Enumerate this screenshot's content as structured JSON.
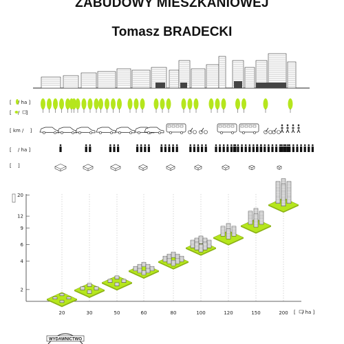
{
  "header": {
    "title": "ZABUDOWY MIESZKANIOWEJ",
    "author": "Tomasz BRADECKI"
  },
  "rows": {
    "trees_label": "[  / ha ]",
    "greenery_label": "[  /  ]",
    "transport_label": "[ km /  ]",
    "people_label": "[  / ha ]",
    "block_label": "[  ]"
  },
  "chart_data": {
    "type": "scatter",
    "x": [
      20,
      30,
      50,
      60,
      80,
      100,
      120,
      150,
      200
    ],
    "x_tick_labels": [
      "20",
      "30",
      "50",
      "60",
      "80",
      "100",
      "120",
      "150",
      "200"
    ],
    "y_tick_labels": [
      "2",
      "4",
      "6",
      "9",
      "12",
      "20"
    ],
    "y_ticks": [
      2,
      4,
      6,
      9,
      12,
      20
    ],
    "y": [
      2,
      2.5,
      3,
      4,
      5,
      7,
      9,
      12,
      20
    ],
    "xlabel": "[  / ha ]",
    "colors": {
      "ground": "#b5e61d",
      "building": "#e8e8e8",
      "outline": "#333333"
    }
  },
  "footer": {
    "logo_text": "WYDAWNICTWO"
  }
}
